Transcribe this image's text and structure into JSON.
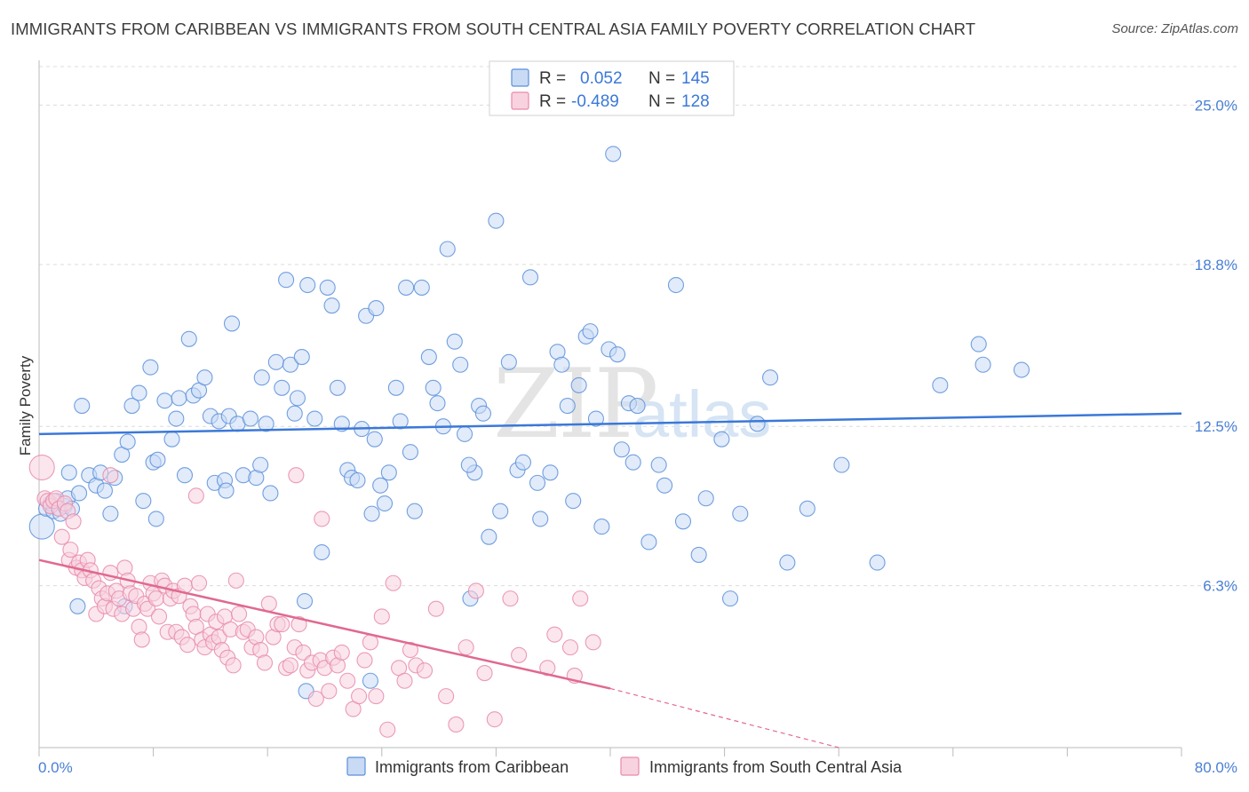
{
  "header": {
    "title": "IMMIGRANTS FROM CARIBBEAN VS IMMIGRANTS FROM SOUTH CENTRAL ASIA FAMILY POVERTY CORRELATION CHART",
    "source": "Source: ZipAtlas.com"
  },
  "watermark": "ZIPatlas",
  "colors": {
    "blue": "#5b8fd9",
    "blue_fill": "#c9daf5",
    "blue_line": "#3b78d8",
    "pink": "#e88aab",
    "pink_fill": "#f8d2df",
    "pink_line": "#e0698f",
    "tick_text": "#4a7fd4",
    "grid": "#dcdcdc"
  },
  "stats": {
    "r_label": "R =",
    "n_label": "N =",
    "blue": {
      "r": "0.052",
      "n": "145"
    },
    "pink": {
      "r": "-0.489",
      "n": "128"
    }
  },
  "legend": {
    "blue_label": "Immigrants from Caribbean",
    "pink_label": "Immigrants from South Central Asia"
  },
  "chart_data": {
    "type": "scatter",
    "title": "IMMIGRANTS FROM CARIBBEAN VS IMMIGRANTS FROM SOUTH CENTRAL ASIA FAMILY POVERTY CORRELATION CHART",
    "xlabel": "",
    "ylabel": "Family Poverty",
    "xlim": [
      0,
      80
    ],
    "ylim": [
      0,
      26.5
    ],
    "x_tick_labels": [
      "0.0%",
      "80.0%"
    ],
    "y_ticks": [
      6.3,
      12.5,
      18.8,
      25.0
    ],
    "y_tick_labels": [
      "6.3%",
      "12.5%",
      "18.8%",
      "25.0%"
    ],
    "grid": true,
    "legend_position": "bottom-center",
    "series": [
      {
        "name": "Immigrants from Caribbean",
        "color": "#5b8fd9",
        "r": 0.052,
        "n": 145,
        "trend": {
          "x": [
            0,
            80
          ],
          "y": [
            12.2,
            13.0
          ],
          "dashed_extension": false
        },
        "points": [
          [
            0.2,
            8.6
          ],
          [
            0.5,
            9.3
          ],
          [
            0.8,
            9.5
          ],
          [
            1,
            9.2
          ],
          [
            1.2,
            9.6
          ],
          [
            1.5,
            9.1
          ],
          [
            1.8,
            9.4
          ],
          [
            2,
            9.7
          ],
          [
            2.3,
            9.3
          ],
          [
            2.8,
            9.9
          ],
          [
            3,
            13.3
          ],
          [
            3.5,
            10.6
          ],
          [
            4,
            10.2
          ],
          [
            4.3,
            10.7
          ],
          [
            4.6,
            10.0
          ],
          [
            5,
            9.1
          ],
          [
            5.3,
            10.5
          ],
          [
            5.8,
            11.4
          ],
          [
            6.2,
            11.9
          ],
          [
            6.5,
            13.3
          ],
          [
            7,
            13.8
          ],
          [
            7.3,
            9.6
          ],
          [
            7.8,
            14.8
          ],
          [
            8,
            11.1
          ],
          [
            8.3,
            11.2
          ],
          [
            8.8,
            13.5
          ],
          [
            9.3,
            12.0
          ],
          [
            9.6,
            12.8
          ],
          [
            9.8,
            13.6
          ],
          [
            10.2,
            10.6
          ],
          [
            10.5,
            15.9
          ],
          [
            10.8,
            13.7
          ],
          [
            11.2,
            13.9
          ],
          [
            11.6,
            14.4
          ],
          [
            12,
            12.9
          ],
          [
            12.3,
            10.3
          ],
          [
            12.6,
            12.7
          ],
          [
            13,
            10.4
          ],
          [
            13.3,
            12.9
          ],
          [
            13.5,
            16.5
          ],
          [
            13.9,
            12.6
          ],
          [
            14.3,
            10.6
          ],
          [
            14.8,
            12.8
          ],
          [
            15.2,
            10.5
          ],
          [
            15.6,
            14.4
          ],
          [
            15.9,
            12.6
          ],
          [
            16.2,
            9.9
          ],
          [
            16.6,
            15.0
          ],
          [
            17,
            14.0
          ],
          [
            17.3,
            18.2
          ],
          [
            17.6,
            14.9
          ],
          [
            17.9,
            13.0
          ],
          [
            18.1,
            13.6
          ],
          [
            18.4,
            15.2
          ],
          [
            18.8,
            18.0
          ],
          [
            19.3,
            12.8
          ],
          [
            19.8,
            7.6
          ],
          [
            20.2,
            17.9
          ],
          [
            20.5,
            17.2
          ],
          [
            20.9,
            14.0
          ],
          [
            21.2,
            12.6
          ],
          [
            21.6,
            10.8
          ],
          [
            21.9,
            10.5
          ],
          [
            22.3,
            10.4
          ],
          [
            22.6,
            12.4
          ],
          [
            22.9,
            16.8
          ],
          [
            23.3,
            9.1
          ],
          [
            23.6,
            17.1
          ],
          [
            23.9,
            10.2
          ],
          [
            24.2,
            9.5
          ],
          [
            24.5,
            10.7
          ],
          [
            25,
            14.0
          ],
          [
            25.3,
            12.7
          ],
          [
            25.7,
            17.9
          ],
          [
            26,
            11.5
          ],
          [
            26.3,
            9.2
          ],
          [
            26.8,
            17.9
          ],
          [
            27.3,
            15.2
          ],
          [
            27.6,
            14.0
          ],
          [
            27.9,
            13.4
          ],
          [
            28.3,
            12.5
          ],
          [
            28.6,
            19.4
          ],
          [
            29.1,
            15.8
          ],
          [
            29.5,
            14.9
          ],
          [
            29.8,
            12.2
          ],
          [
            30.2,
            5.8
          ],
          [
            30.5,
            10.7
          ],
          [
            30.8,
            13.3
          ],
          [
            31.1,
            13.0
          ],
          [
            31.5,
            8.2
          ],
          [
            32,
            20.5
          ],
          [
            32.3,
            9.2
          ],
          [
            32.9,
            15.0
          ],
          [
            33.5,
            10.8
          ],
          [
            33.9,
            11.1
          ],
          [
            34.4,
            18.3
          ],
          [
            34.9,
            10.3
          ],
          [
            35.1,
            8.9
          ],
          [
            35.8,
            10.7
          ],
          [
            36.3,
            15.4
          ],
          [
            36.6,
            14.9
          ],
          [
            37,
            13.3
          ],
          [
            37.4,
            9.6
          ],
          [
            37.8,
            14.1
          ],
          [
            38.3,
            16.0
          ],
          [
            38.6,
            16.2
          ],
          [
            39,
            12.8
          ],
          [
            39.4,
            8.6
          ],
          [
            39.9,
            15.5
          ],
          [
            40.2,
            23.1
          ],
          [
            40.5,
            15.3
          ],
          [
            41.3,
            13.4
          ],
          [
            41.6,
            11.1
          ],
          [
            41.9,
            13.3
          ],
          [
            42.7,
            8.0
          ],
          [
            43.4,
            11.0
          ],
          [
            43.8,
            10.2
          ],
          [
            44.6,
            18.0
          ],
          [
            45.1,
            8.8
          ],
          [
            46.2,
            7.5
          ],
          [
            46.7,
            9.7
          ],
          [
            47.8,
            12.0
          ],
          [
            48.4,
            5.8
          ],
          [
            49.1,
            9.1
          ],
          [
            50.3,
            12.6
          ],
          [
            51.2,
            14.4
          ],
          [
            52.4,
            7.2
          ],
          [
            53.8,
            9.3
          ],
          [
            56.2,
            11.0
          ],
          [
            58.7,
            7.2
          ],
          [
            63.1,
            14.1
          ],
          [
            65.8,
            15.7
          ],
          [
            66.1,
            14.9
          ],
          [
            68.8,
            14.7
          ],
          [
            23.2,
            2.6
          ],
          [
            18.7,
            2.2
          ],
          [
            6,
            5.5
          ],
          [
            2.7,
            5.5
          ],
          [
            2.1,
            10.7
          ],
          [
            15.5,
            11.0
          ],
          [
            23.5,
            12.0
          ],
          [
            18.6,
            5.7
          ],
          [
            13.1,
            10.0
          ],
          [
            8.2,
            8.9
          ],
          [
            40.8,
            11.6
          ],
          [
            30.1,
            11.0
          ]
        ]
      },
      {
        "name": "Immigrants from South Central Asia",
        "color": "#e88aab",
        "r": -0.489,
        "n": 128,
        "trend": {
          "x": [
            0,
            40
          ],
          "y": [
            7.3,
            2.3
          ],
          "dashed_extension": true,
          "dashed_to": [
            56,
            0
          ]
        },
        "points": [
          [
            0.2,
            10.9
          ],
          [
            0.4,
            9.7
          ],
          [
            0.6,
            9.6
          ],
          [
            0.8,
            9.4
          ],
          [
            1,
            9.6
          ],
          [
            1.2,
            9.7
          ],
          [
            1.4,
            9.3
          ],
          [
            1.6,
            8.2
          ],
          [
            1.8,
            9.5
          ],
          [
            2,
            9.2
          ],
          [
            2.1,
            7.3
          ],
          [
            2.2,
            7.7
          ],
          [
            2.4,
            8.8
          ],
          [
            2.6,
            7.0
          ],
          [
            2.8,
            7.2
          ],
          [
            3,
            6.9
          ],
          [
            3.2,
            6.6
          ],
          [
            3.4,
            7.3
          ],
          [
            3.6,
            6.9
          ],
          [
            3.8,
            6.5
          ],
          [
            4,
            5.2
          ],
          [
            4.2,
            6.2
          ],
          [
            4.4,
            5.8
          ],
          [
            4.6,
            5.5
          ],
          [
            4.8,
            6.0
          ],
          [
            5,
            6.8
          ],
          [
            5.2,
            5.4
          ],
          [
            5.4,
            6.1
          ],
          [
            5.6,
            5.8
          ],
          [
            5.8,
            5.2
          ],
          [
            6,
            7.0
          ],
          [
            6.2,
            6.5
          ],
          [
            6.4,
            6.0
          ],
          [
            6.6,
            5.4
          ],
          [
            6.8,
            5.9
          ],
          [
            7,
            4.7
          ],
          [
            7.2,
            4.2
          ],
          [
            7.4,
            5.6
          ],
          [
            7.6,
            5.4
          ],
          [
            7.8,
            6.4
          ],
          [
            8,
            6.0
          ],
          [
            8.2,
            5.8
          ],
          [
            8.4,
            5.1
          ],
          [
            8.6,
            6.5
          ],
          [
            8.8,
            6.3
          ],
          [
            9,
            4.5
          ],
          [
            9.2,
            5.8
          ],
          [
            9.4,
            6.1
          ],
          [
            9.6,
            4.5
          ],
          [
            9.8,
            5.9
          ],
          [
            10,
            4.3
          ],
          [
            10.2,
            6.3
          ],
          [
            10.4,
            4.0
          ],
          [
            10.6,
            5.5
          ],
          [
            10.8,
            5.2
          ],
          [
            11,
            4.7
          ],
          [
            11.2,
            6.4
          ],
          [
            11.4,
            4.2
          ],
          [
            11.6,
            3.9
          ],
          [
            11.8,
            5.2
          ],
          [
            12,
            4.4
          ],
          [
            12.2,
            4.1
          ],
          [
            12.4,
            4.9
          ],
          [
            12.6,
            4.3
          ],
          [
            12.8,
            3.8
          ],
          [
            13,
            5.1
          ],
          [
            13.2,
            3.5
          ],
          [
            13.4,
            4.6
          ],
          [
            13.6,
            3.2
          ],
          [
            13.8,
            6.5
          ],
          [
            14,
            5.2
          ],
          [
            14.3,
            4.5
          ],
          [
            14.6,
            4.6
          ],
          [
            14.9,
            3.9
          ],
          [
            15.2,
            4.3
          ],
          [
            15.5,
            3.8
          ],
          [
            15.8,
            3.3
          ],
          [
            16.1,
            5.6
          ],
          [
            16.4,
            4.3
          ],
          [
            16.7,
            4.8
          ],
          [
            17,
            4.8
          ],
          [
            17.3,
            3.1
          ],
          [
            17.6,
            3.2
          ],
          [
            17.9,
            3.9
          ],
          [
            18.2,
            4.8
          ],
          [
            18.5,
            3.7
          ],
          [
            18.8,
            3.0
          ],
          [
            19.1,
            3.3
          ],
          [
            19.4,
            1.9
          ],
          [
            19.7,
            3.4
          ],
          [
            20,
            3.1
          ],
          [
            20.3,
            2.2
          ],
          [
            20.6,
            3.5
          ],
          [
            20.9,
            3.2
          ],
          [
            21.2,
            3.7
          ],
          [
            21.6,
            2.6
          ],
          [
            22,
            1.5
          ],
          [
            22.4,
            2.0
          ],
          [
            22.8,
            3.4
          ],
          [
            23.2,
            4.1
          ],
          [
            23.6,
            2.0
          ],
          [
            24,
            5.1
          ],
          [
            24.4,
            0.7
          ],
          [
            24.8,
            6.4
          ],
          [
            25.2,
            3.1
          ],
          [
            25.6,
            2.6
          ],
          [
            26,
            3.8
          ],
          [
            26.4,
            3.2
          ],
          [
            27,
            3.0
          ],
          [
            27.8,
            5.4
          ],
          [
            28.5,
            2.0
          ],
          [
            29.2,
            0.9
          ],
          [
            29.9,
            3.9
          ],
          [
            30.6,
            6.1
          ],
          [
            31.2,
            2.9
          ],
          [
            31.9,
            1.1
          ],
          [
            33,
            5.8
          ],
          [
            33.6,
            3.6
          ],
          [
            35.6,
            3.1
          ],
          [
            36.1,
            4.4
          ],
          [
            37.2,
            3.9
          ],
          [
            37.5,
            2.8
          ],
          [
            37.9,
            5.8
          ],
          [
            38.8,
            4.1
          ],
          [
            19.8,
            8.9
          ],
          [
            18.0,
            10.6
          ],
          [
            11.0,
            9.8
          ],
          [
            5.0,
            10.6
          ]
        ]
      }
    ]
  }
}
